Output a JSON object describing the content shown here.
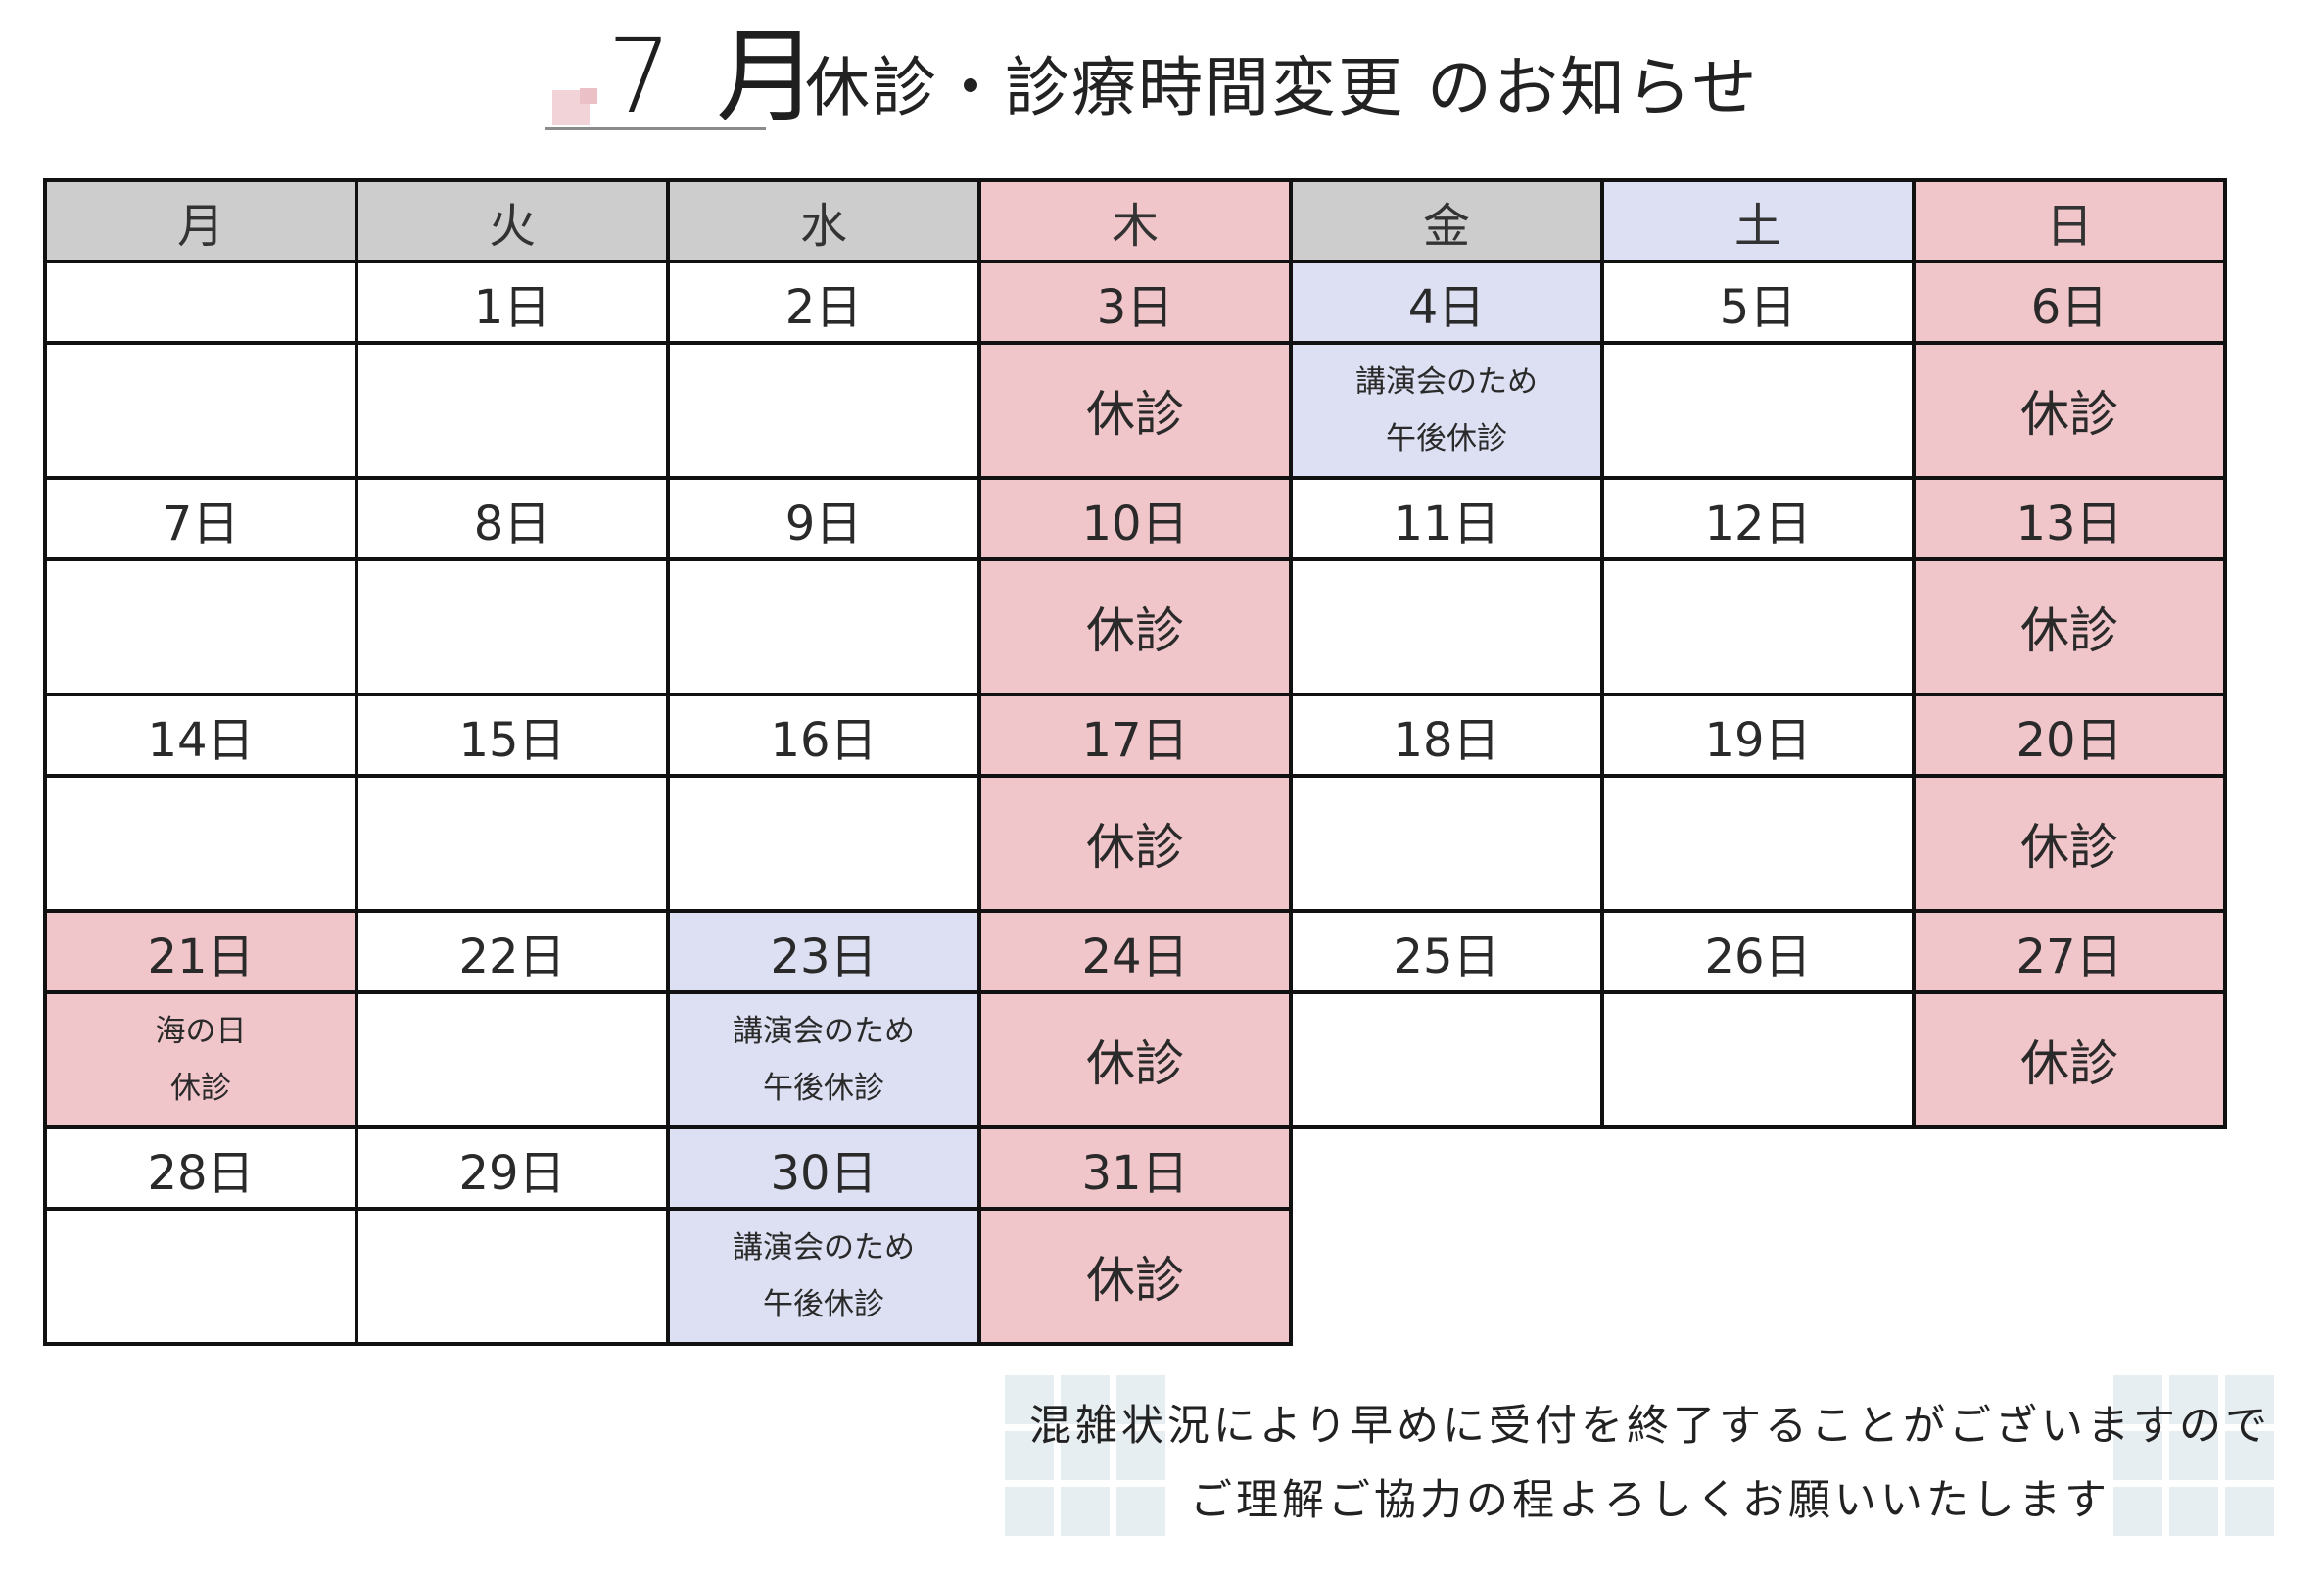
{
  "title": {
    "month": "7 月",
    "text": "休診・診療時間変更 のお知らせ"
  },
  "weekdays": [
    "月",
    "火",
    "水",
    "木",
    "金",
    "土",
    "日"
  ],
  "weeks": [
    {
      "dates": [
        "",
        "1日",
        "2日",
        "3日",
        "4日",
        "5日",
        "6日"
      ],
      "notes": [
        "",
        "",
        "",
        "休診",
        "講演会のため\n午後休診",
        "",
        "休診"
      ]
    },
    {
      "dates": [
        "7日",
        "8日",
        "9日",
        "10日",
        "11日",
        "12日",
        "13日"
      ],
      "notes": [
        "",
        "",
        "",
        "休診",
        "",
        "",
        "休診"
      ]
    },
    {
      "dates": [
        "14日",
        "15日",
        "16日",
        "17日",
        "18日",
        "19日",
        "20日"
      ],
      "notes": [
        "",
        "",
        "",
        "休診",
        "",
        "",
        "休診"
      ]
    },
    {
      "dates": [
        "21日",
        "22日",
        "23日",
        "24日",
        "25日",
        "26日",
        "27日"
      ],
      "notes": [
        "海の日\n休診",
        "",
        "講演会のため\n午後休診",
        "休診",
        "",
        "",
        "休診"
      ]
    },
    {
      "dates": [
        "28日",
        "29日",
        "30日",
        "31日"
      ],
      "notes": [
        "",
        "",
        "講演会のため\n午後休診",
        "休診"
      ]
    }
  ],
  "colors": {
    "closed": "#f1c6ca",
    "afternoon_closed": "#dce0f2",
    "header": "#cdcdcd"
  },
  "notice": {
    "line1": "混雑状況により早めに受付を終了することがございますので",
    "line2": "ご理解ご協力の程よろしくお願いいたします"
  }
}
